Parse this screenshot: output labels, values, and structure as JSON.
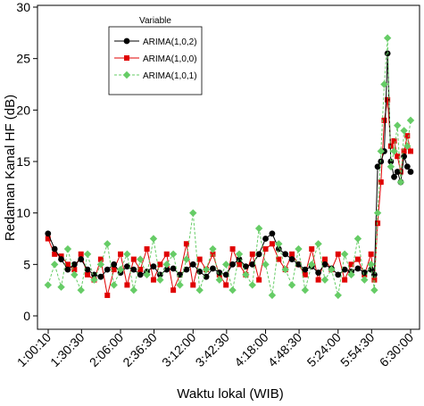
{
  "chart_data": {
    "type": "line",
    "xlabel": "Waktu lokal (WIB)",
    "ylabel": "Redaman Kanal HF (dB)",
    "x_ticks": [
      "1:00:10",
      "1:30:30",
      "2:06:00",
      "2:36:30",
      "3:12:00",
      "3:42:30",
      "4:18:00",
      "4:48:30",
      "5:24:00",
      "5:54:30",
      "6:30:00"
    ],
    "x_tick_minutes": [
      60.17,
      90.5,
      126,
      156.5,
      192,
      222.5,
      258,
      288.5,
      324,
      354.5,
      390
    ],
    "xlim_minutes": [
      60.17,
      390
    ],
    "ylim": [
      0,
      30
    ],
    "y_ticks": [
      0,
      5,
      10,
      15,
      20,
      25,
      30
    ],
    "legend": {
      "title": "Variable",
      "position": "top-left"
    },
    "grid": false,
    "x_minutes": [
      60,
      66,
      72,
      78,
      84,
      90,
      96,
      102,
      108,
      114,
      120,
      126,
      132,
      138,
      144,
      150,
      156,
      162,
      168,
      174,
      180,
      186,
      192,
      198,
      204,
      210,
      216,
      222,
      228,
      234,
      240,
      246,
      252,
      258,
      264,
      270,
      276,
      282,
      288,
      294,
      300,
      306,
      312,
      318,
      324,
      330,
      336,
      342,
      348,
      354,
      357,
      360,
      363,
      366,
      369,
      372,
      375,
      378,
      381,
      384,
      387,
      390
    ],
    "series": [
      {
        "name": "ARIMA(1,0,2)",
        "color": "#000000",
        "marker": "circle",
        "values": [
          8.0,
          6.5,
          5.5,
          4.5,
          5.0,
          5.5,
          4.5,
          4.0,
          3.8,
          4.5,
          5.0,
          4.2,
          4.8,
          4.5,
          4.0,
          4.3,
          4.8,
          4.0,
          4.5,
          4.6,
          4.0,
          4.5,
          5.0,
          4.3,
          3.8,
          4.6,
          4.2,
          4.0,
          5.0,
          5.5,
          4.8,
          5.0,
          6.0,
          7.5,
          8.0,
          6.5,
          6.0,
          5.5,
          5.0,
          4.5,
          4.8,
          4.2,
          5.0,
          4.6,
          4.0,
          4.5,
          4.3,
          4.6,
          4.2,
          4.5,
          4.0,
          14.5,
          15.0,
          16.0,
          25.5,
          15.0,
          13.5,
          14.0,
          13.0,
          15.5,
          14.5,
          14.0
        ]
      },
      {
        "name": "ARIMA(1,0,0)",
        "color": "#e00000",
        "marker": "square",
        "values": [
          7.5,
          6.0,
          5.8,
          5.0,
          4.5,
          6.0,
          4.0,
          3.5,
          5.5,
          2.0,
          4.5,
          6.0,
          3.0,
          5.5,
          4.5,
          6.5,
          3.5,
          5.0,
          6.0,
          2.5,
          4.0,
          7.0,
          3.0,
          5.5,
          4.5,
          6.0,
          4.0,
          3.0,
          6.5,
          5.0,
          4.0,
          6.0,
          3.5,
          6.5,
          7.0,
          5.5,
          4.5,
          6.0,
          5.0,
          4.0,
          6.5,
          3.5,
          5.5,
          4.5,
          6.0,
          3.5,
          5.0,
          5.5,
          4.0,
          6.0,
          3.5,
          9.0,
          13.0,
          19.0,
          21.0,
          16.5,
          17.0,
          15.5,
          14.0,
          16.0,
          17.5,
          16.0
        ]
      },
      {
        "name": "ARIMA(1,0,1)",
        "color": "#66cc66",
        "marker": "diamond",
        "values": [
          3.0,
          5.0,
          2.8,
          6.5,
          4.0,
          2.5,
          6.0,
          3.5,
          5.0,
          7.0,
          3.0,
          4.5,
          6.0,
          2.5,
          5.5,
          4.0,
          7.5,
          3.5,
          5.0,
          6.0,
          3.0,
          5.5,
          10.0,
          2.5,
          4.5,
          6.5,
          3.5,
          5.0,
          2.5,
          6.0,
          4.0,
          3.0,
          8.5,
          5.0,
          2.0,
          7.0,
          4.5,
          3.0,
          6.5,
          2.5,
          5.0,
          7.0,
          3.5,
          4.5,
          2.0,
          6.0,
          4.0,
          7.5,
          3.5,
          5.0,
          2.5,
          10.0,
          16.0,
          22.5,
          27.0,
          14.5,
          16.0,
          18.5,
          13.0,
          18.0,
          16.5,
          19.0
        ]
      }
    ]
  }
}
